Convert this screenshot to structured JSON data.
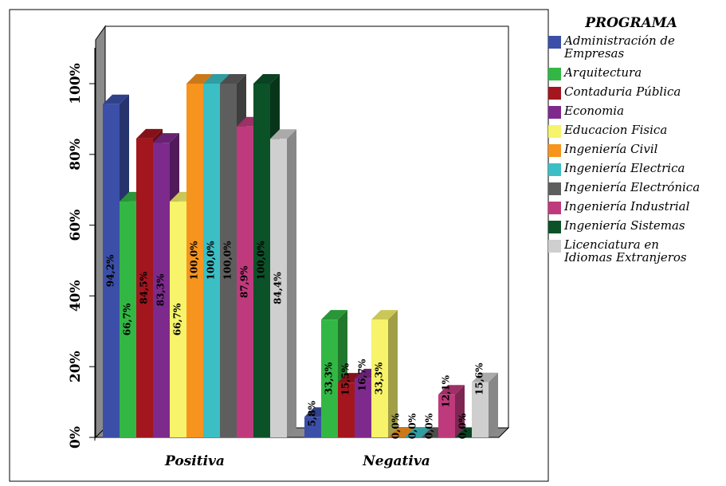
{
  "chart_data": {
    "type": "bar",
    "title": "",
    "xlabel": "",
    "ylabel": "",
    "ylim": [
      0,
      100
    ],
    "yticks": [
      "0%",
      "20%",
      "40%",
      "60%",
      "80%",
      "100%"
    ],
    "categories": [
      "Positiva",
      "Negativa"
    ],
    "legend_title": "PROGRAMA",
    "legend_position": "right",
    "series": [
      {
        "name": "Administración de Empresas",
        "color": "#3b4fa8",
        "values": [
          94.2,
          5.8
        ],
        "labels": [
          "94,2%",
          "5,8%"
        ],
        "legend_lines": [
          "Administración de",
          "Empresas"
        ]
      },
      {
        "name": "Arquitectura",
        "color": "#33b744",
        "values": [
          66.7,
          33.3
        ],
        "labels": [
          "66,7%",
          "33,3%"
        ],
        "legend_lines": [
          "Arquitectura"
        ]
      },
      {
        "name": "Contaduria Pública",
        "color": "#a3161e",
        "values": [
          84.5,
          15.5
        ],
        "labels": [
          "84,5%",
          "15,5%"
        ],
        "legend_lines": [
          "Contaduria Pública"
        ]
      },
      {
        "name": "Economia",
        "color": "#7d2a8c",
        "values": [
          83.3,
          16.7
        ],
        "labels": [
          "83,3%",
          "16,7%"
        ],
        "legend_lines": [
          "Economia"
        ]
      },
      {
        "name": "Educacion Fisica",
        "color": "#f7f36a",
        "values": [
          66.7,
          33.3
        ],
        "labels": [
          "66,7%",
          "33,3%"
        ],
        "legend_lines": [
          "Educacion Fisica"
        ]
      },
      {
        "name": "Ingeniería Civil",
        "color": "#f7941d",
        "values": [
          100.0,
          0.0
        ],
        "labels": [
          "100,0%",
          "0,0%"
        ],
        "legend_lines": [
          "Ingeniería Civil"
        ]
      },
      {
        "name": "Ingeniería Electrica",
        "color": "#3bbfc4",
        "values": [
          100.0,
          0.0
        ],
        "labels": [
          "100,0%",
          "0,0%"
        ],
        "legend_lines": [
          "Ingeniería Electrica"
        ]
      },
      {
        "name": "Ingeniería Electrónica",
        "color": "#5e5e5e",
        "values": [
          100.0,
          0.0
        ],
        "labels": [
          "100,0%",
          "0,0%"
        ],
        "legend_lines": [
          "Ingeniería Electrónica"
        ]
      },
      {
        "name": "Ingeniería Industrial",
        "color": "#bf3a7c",
        "values": [
          87.9,
          12.1
        ],
        "labels": [
          "87,9%",
          "12,1%"
        ],
        "legend_lines": [
          "Ingeniería Industrial"
        ]
      },
      {
        "name": "Ingeniería Sistemas",
        "color": "#0b5228",
        "values": [
          100.0,
          0.0
        ],
        "labels": [
          "100,0%",
          "0,0%"
        ],
        "legend_lines": [
          "Ingeniería Sistemas"
        ]
      },
      {
        "name": "Licenciatura en Idiomas Extranjeros",
        "color": "#cfcfcf",
        "values": [
          84.4,
          15.6
        ],
        "labels": [
          "84,4%",
          "15,6%"
        ],
        "legend_lines": [
          "Licenciatura en",
          "Idiomas Extranjeros"
        ]
      }
    ]
  }
}
